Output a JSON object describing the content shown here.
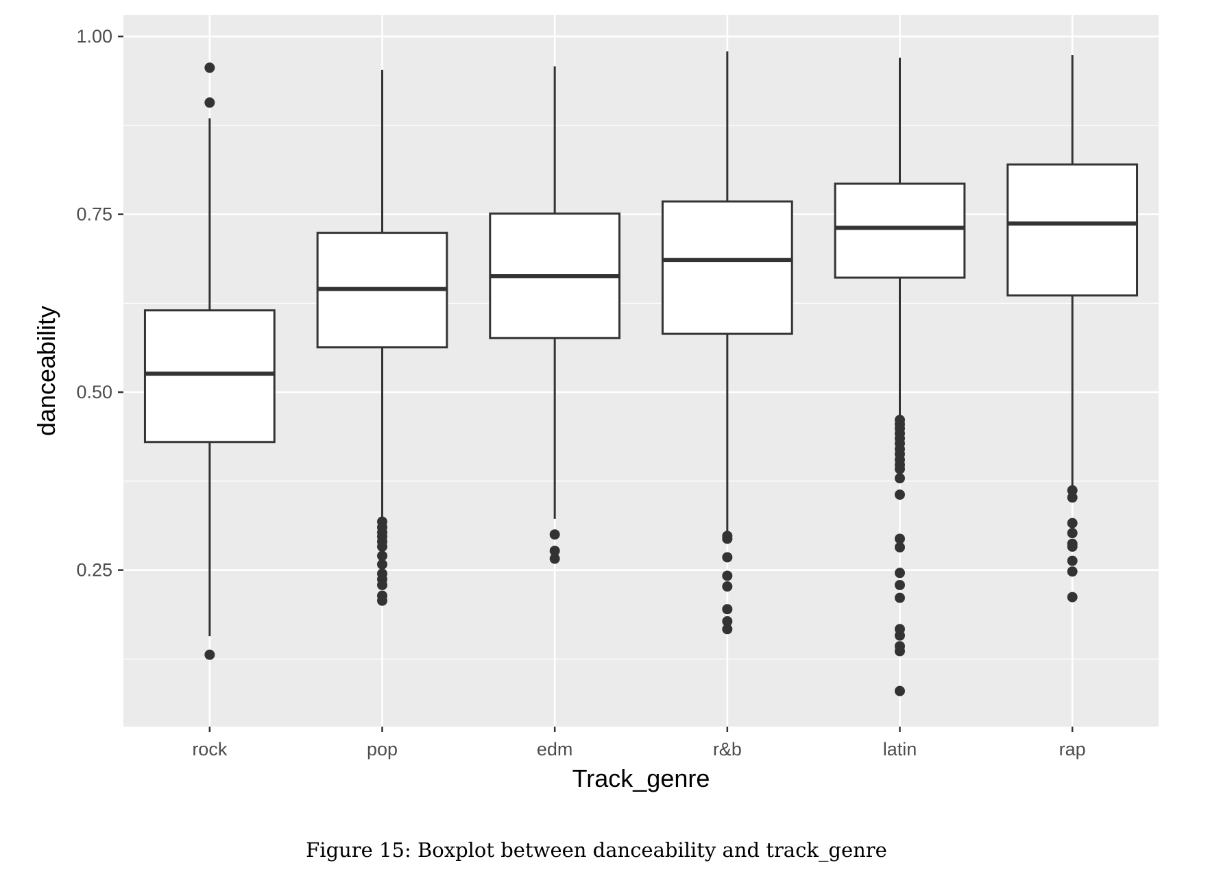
{
  "chart_data": {
    "type": "boxplot",
    "xlabel": "Track_genre",
    "ylabel": "danceability",
    "ylim": [
      0.03,
      1.03
    ],
    "y_ticks": [
      0.25,
      0.5,
      0.75,
      1.0
    ],
    "y_tick_labels": [
      "0.25",
      "0.50",
      "0.75",
      "1.00"
    ],
    "y_minor_ticks": [
      0.125,
      0.375,
      0.625,
      0.875
    ],
    "grid": true,
    "legend": "none",
    "caption": "Figure 15: Boxplot between danceability and track_genre",
    "colors": {
      "panel": "#EBEBEB",
      "grid": "#FFFFFF",
      "box_fill": "#FFFFFF",
      "box_line": "#333333",
      "outlier": "#333333"
    },
    "categories": [
      "rock",
      "pop",
      "edm",
      "r&b",
      "latin",
      "rap"
    ],
    "boxes": [
      {
        "category": "rock",
        "whisker_low": 0.157,
        "q1": 0.43,
        "median": 0.526,
        "q3": 0.615,
        "whisker_high": 0.885,
        "outliers": [
          0.956,
          0.907,
          0.131
        ]
      },
      {
        "category": "pop",
        "whisker_low": 0.32,
        "q1": 0.563,
        "median": 0.645,
        "q3": 0.724,
        "whisker_high": 0.953,
        "outliers": [
          0.318,
          0.31,
          0.303,
          0.297,
          0.29,
          0.283,
          0.27,
          0.258,
          0.245,
          0.237,
          0.229,
          0.214,
          0.207
        ]
      },
      {
        "category": "edm",
        "whisker_low": 0.322,
        "q1": 0.576,
        "median": 0.663,
        "q3": 0.751,
        "whisker_high": 0.958,
        "outliers": [
          0.3,
          0.277,
          0.266
        ]
      },
      {
        "category": "r&b",
        "whisker_low": 0.302,
        "q1": 0.582,
        "median": 0.686,
        "q3": 0.768,
        "whisker_high": 0.979,
        "outliers": [
          0.298,
          0.294,
          0.268,
          0.242,
          0.227,
          0.195,
          0.178,
          0.167
        ]
      },
      {
        "category": "latin",
        "whisker_low": 0.465,
        "q1": 0.661,
        "median": 0.731,
        "q3": 0.793,
        "whisker_high": 0.97,
        "outliers": [
          0.461,
          0.455,
          0.449,
          0.442,
          0.435,
          0.428,
          0.42,
          0.413,
          0.405,
          0.398,
          0.392,
          0.379,
          0.356,
          0.294,
          0.282,
          0.246,
          0.229,
          0.211,
          0.167,
          0.158,
          0.143,
          0.136,
          0.08
        ]
      },
      {
        "category": "rap",
        "whisker_low": 0.365,
        "q1": 0.636,
        "median": 0.737,
        "q3": 0.82,
        "whisker_high": 0.974,
        "outliers": [
          0.362,
          0.352,
          0.316,
          0.302,
          0.287,
          0.283,
          0.263,
          0.248,
          0.212
        ]
      }
    ]
  }
}
